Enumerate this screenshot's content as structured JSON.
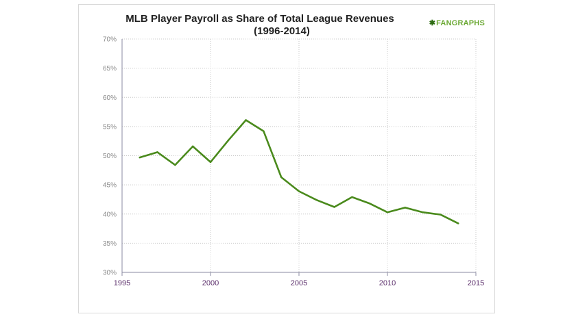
{
  "chart_data": {
    "type": "line",
    "title": "MLB Player Payroll as  Share of Total League Revenues",
    "subtitle": "(1996-2014)",
    "watermark": "FANGRAPHS",
    "xlabel": "",
    "ylabel": "",
    "xlim": [
      1995,
      2015
    ],
    "ylim": [
      30,
      70
    ],
    "x_ticks": [
      1995,
      2000,
      2005,
      2010,
      2015
    ],
    "y_ticks": [
      30,
      35,
      40,
      45,
      50,
      55,
      60,
      65,
      70
    ],
    "y_tick_labels": [
      "30%",
      "35%",
      "40%",
      "45%",
      "50%",
      "55%",
      "60%",
      "65%",
      "70%"
    ],
    "grid": "vertical and horizontal dotted",
    "series": [
      {
        "color": "#4a8a1c",
        "x": [
          1996,
          1997,
          1998,
          1999,
          2000,
          2001,
          2002,
          2003,
          2004,
          2005,
          2006,
          2007,
          2008,
          2009,
          2010,
          2011,
          2012,
          2013,
          2014
        ],
        "values": [
          49.7,
          50.6,
          48.4,
          51.6,
          48.9,
          52.6,
          56.1,
          54.2,
          46.3,
          43.9,
          42.4,
          41.2,
          42.9,
          41.8,
          40.3,
          41.1,
          40.3,
          39.9,
          38.4
        ]
      }
    ]
  }
}
